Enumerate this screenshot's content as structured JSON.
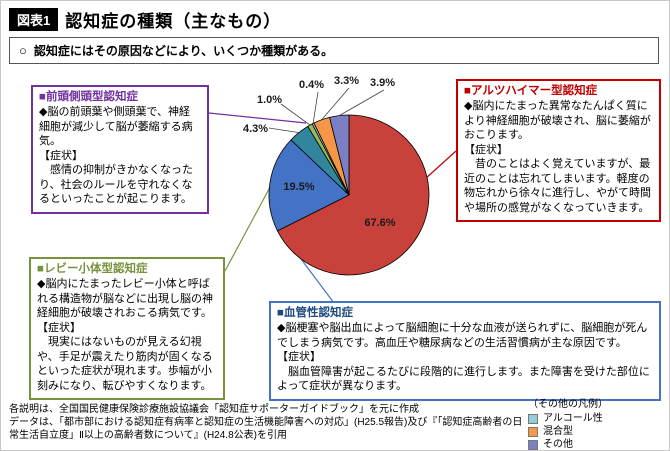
{
  "header": {
    "tag": "図表1",
    "title": "認知症の種類（主なもの）"
  },
  "summary": {
    "bullet": "○",
    "text": "認知症にはその原因などにより、いくつか種類がある。"
  },
  "boxes": {
    "frontotemporal": {
      "title": "■前頭側頭型認知症",
      "body": "◆脳の前頭葉や側頭葉で、神経細胞が減少して脳が萎縮する病気。",
      "symptom_label": "【症状】",
      "symptom": "感情の抑制がきかなくなったり、社会のルールを守れなくなるといったことが起こります。"
    },
    "lewy": {
      "title": "■レビー小体型認知症",
      "body": "◆脳内にたまったレビー小体と呼ばれる構造物が脳などに出現し脳の神経細胞が破壊されおこる病気です。",
      "symptom_label": "【症状】",
      "symptom": "現実にはないものが見える幻視や、手足が震えたり筋肉が固くなるといった症状が現れます。歩幅が小刻みになり、転びやすくなります。"
    },
    "alzheimer": {
      "title": "■アルツハイマー型認知症",
      "body": "◆脳内にたまった異常なたんぱく質により神経細胞が破壊され、脳に萎縮がおこります。",
      "symptom_label": "【症状】",
      "symptom": "昔のことはよく覚えていますが、最近のことは忘れてしまいます。軽度の物忘れから徐々に進行し、やがて時間や場所の感覚がなくなっていきます。"
    },
    "vascular": {
      "title": "■血管性認知症",
      "body": "◆脳梗塞や脳出血によって脳細胞に十分な血液が送られずに、脳細胞が死んでしまう病気です。高血圧や糖尿病などの生活習慣病が主な原因です。",
      "symptom_label": "【症状】",
      "symptom": "脳血管障害が起こるたびに段階的に進行します。また障害を受けた部位によって症状が異なります。"
    }
  },
  "chart_data": {
    "type": "pie",
    "title": "認知症の種類（主なもの）",
    "unit": "%",
    "start_angle": "top",
    "direction": "clockwise",
    "labels_format": "percent",
    "slices": [
      {
        "label": "アルツハイマー型認知症",
        "value": 67.6,
        "color": "#C8413B"
      },
      {
        "label": "血管性認知症",
        "value": 19.5,
        "color": "#4472C4"
      },
      {
        "label": "レビー小体型認知症",
        "value": 4.3,
        "color": "#31859C"
      },
      {
        "label": "前頭側頭型認知症",
        "value": 1.0,
        "color": "#9BBB59"
      },
      {
        "label": "アルコール性",
        "value": 0.4,
        "color": "#92CDDC"
      },
      {
        "label": "混合型",
        "value": 3.3,
        "color": "#F79646"
      },
      {
        "label": "その他",
        "value": 3.9,
        "color": "#7B7FC4"
      }
    ]
  },
  "legend": {
    "title": "（その他の凡例）",
    "items": [
      {
        "label": "アルコール性",
        "color": "#92CDDC"
      },
      {
        "label": "混合型",
        "color": "#F79646"
      },
      {
        "label": "その他",
        "color": "#7B7FC4"
      }
    ]
  },
  "footer": {
    "line1": "各説明は、全国国民健康保険診療施設協議会「認知症サポーターガイドブック」を元に作成",
    "line2": "データは、「都市部における認知症有病率と認知症の生活機能障害への対応」(H25.5報告)及び『「認知症高齢者の日常生活自立度」Ⅱ以上の高齢者数について』(H24.8公表)を引用"
  }
}
